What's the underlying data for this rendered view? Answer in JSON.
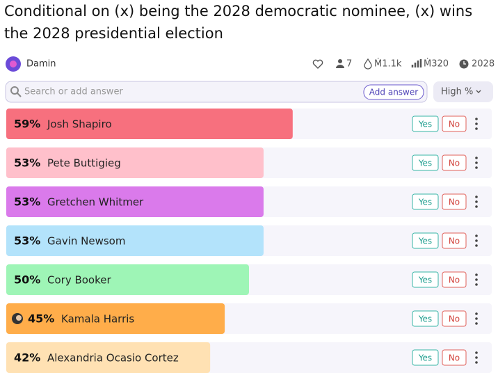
{
  "header": {
    "title_lines": [
      "Conditional on (x) being the 2028 democratic nominee, (x) wins",
      "the 2028 presidential election"
    ],
    "author": "Damin",
    "stats": {
      "traders": "7",
      "volume": "Ṁ1.1k",
      "liquidity": "Ṁ320",
      "close": "2028"
    }
  },
  "search": {
    "placeholder": "Search or add answer",
    "add_button": "Add answer",
    "sort": "High %"
  },
  "buttons": {
    "yes": "Yes",
    "no": "No"
  },
  "answers": [
    {
      "name": "Josh Shapiro",
      "probability": 59,
      "probability_label": "59%",
      "color": "#f7707e"
    },
    {
      "name": "Pete Buttigieg",
      "probability": 53,
      "probability_label": "53%",
      "color": "#ffc0cb"
    },
    {
      "name": "Gretchen Whitmer",
      "probability": 53,
      "probability_label": "53%",
      "color": "#da7aeb"
    },
    {
      "name": "Gavin Newsom",
      "probability": 53,
      "probability_label": "53%",
      "color": "#b3e3fb"
    },
    {
      "name": "Cory Booker",
      "probability": 50,
      "probability_label": "50%",
      "color": "#9ef5b6"
    },
    {
      "name": "Kamala Harris",
      "probability": 45,
      "probability_label": "45%",
      "color": "#ffad4a",
      "avatar": true
    },
    {
      "name": "Alexandria Ocasio Cortez",
      "probability": 42,
      "probability_label": "42%",
      "color": "#ffe1b3"
    }
  ]
}
